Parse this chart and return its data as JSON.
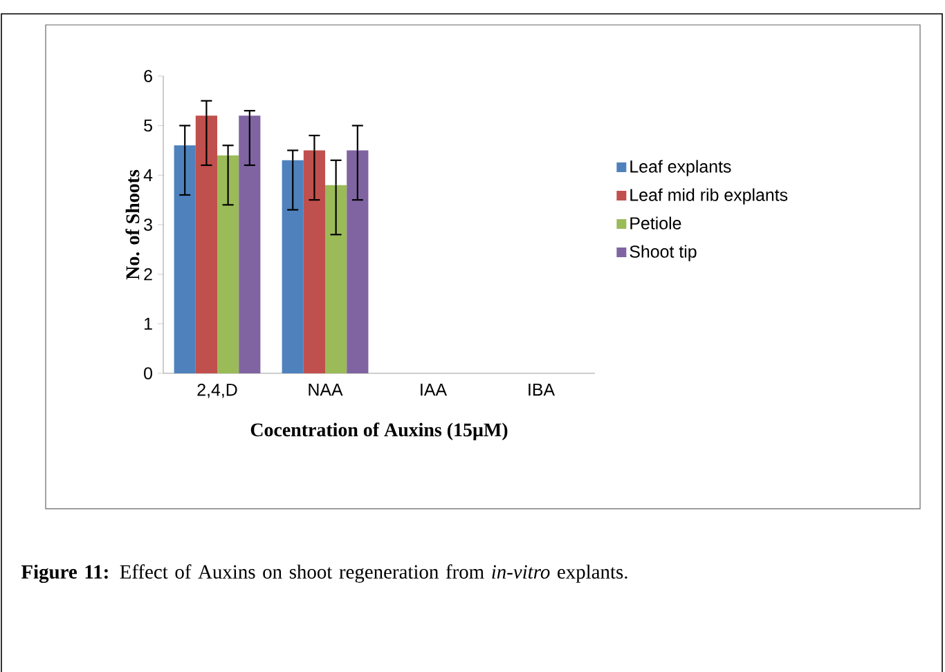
{
  "chart_data": {
    "type": "bar",
    "xlabel": "Cocentration of Auxins (15µM)",
    "ylabel": "No. of Shoots",
    "categories": [
      "2,4,D",
      "NAA",
      "IAA",
      "IBA"
    ],
    "series": [
      {
        "name": "Leaf explants",
        "color": "#4f81bd",
        "values": [
          4.6,
          4.3,
          null,
          null
        ],
        "errors": [
          [
            3.6,
            5.0
          ],
          [
            3.3,
            4.5
          ],
          null,
          null
        ]
      },
      {
        "name": "Leaf mid rib explants",
        "color": "#c0504d",
        "values": [
          5.2,
          4.5,
          null,
          null
        ],
        "errors": [
          [
            4.2,
            5.5
          ],
          [
            3.5,
            4.8
          ],
          null,
          null
        ]
      },
      {
        "name": "Petiole",
        "color": "#9bbb59",
        "values": [
          4.4,
          3.8,
          null,
          null
        ],
        "errors": [
          [
            3.4,
            4.6
          ],
          [
            2.8,
            4.3
          ],
          null,
          null
        ]
      },
      {
        "name": "Shoot tip",
        "color": "#8064a2",
        "values": [
          5.2,
          4.5,
          null,
          null
        ],
        "errors": [
          [
            4.2,
            5.3
          ],
          [
            3.5,
            5.0
          ],
          null,
          null
        ]
      }
    ],
    "ylim": [
      0,
      6
    ],
    "yticks": [
      0,
      1,
      2,
      3,
      4,
      5,
      6
    ],
    "grid": false,
    "legend": "right",
    "annotations": [
      "**Figure 11:** Effect of Auxins on shoot regeneration from *in-vitro* explants."
    ]
  }
}
